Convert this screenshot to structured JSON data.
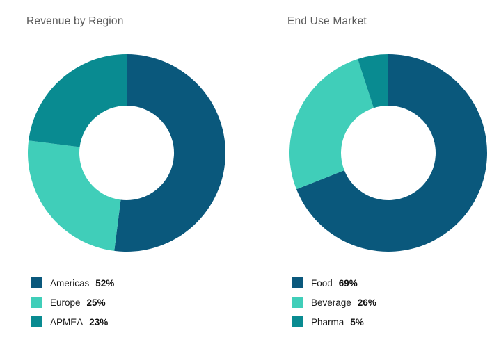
{
  "styles": {
    "background": "#ffffff",
    "title_color": "#595959",
    "text_color": "#1a1a1a"
  },
  "chart_data": [
    {
      "type": "pie",
      "variant": "donut",
      "title": "Revenue by Region",
      "categories": [
        "Americas",
        "Europe",
        "APMEA"
      ],
      "values": [
        52,
        25,
        23
      ],
      "display_values": [
        "52%",
        "25%",
        "23%"
      ],
      "unit": "percent",
      "colors": [
        "#0a587c",
        "#40ceb9",
        "#098b91"
      ],
      "start_angle_deg": 0,
      "direction": "clockwise",
      "inner_radius_ratio": 0.48,
      "legend_position": "bottom-left",
      "data_labels": false
    },
    {
      "type": "pie",
      "variant": "donut",
      "title": "End Use Market",
      "categories": [
        "Food",
        "Beverage",
        "Pharma"
      ],
      "values": [
        69,
        26,
        5
      ],
      "display_values": [
        "69%",
        "26%",
        "5%"
      ],
      "unit": "percent",
      "colors": [
        "#0a587c",
        "#40ceb9",
        "#098b91"
      ],
      "start_angle_deg": 0,
      "direction": "clockwise",
      "inner_radius_ratio": 0.48,
      "legend_position": "bottom-left",
      "data_labels": false
    }
  ]
}
